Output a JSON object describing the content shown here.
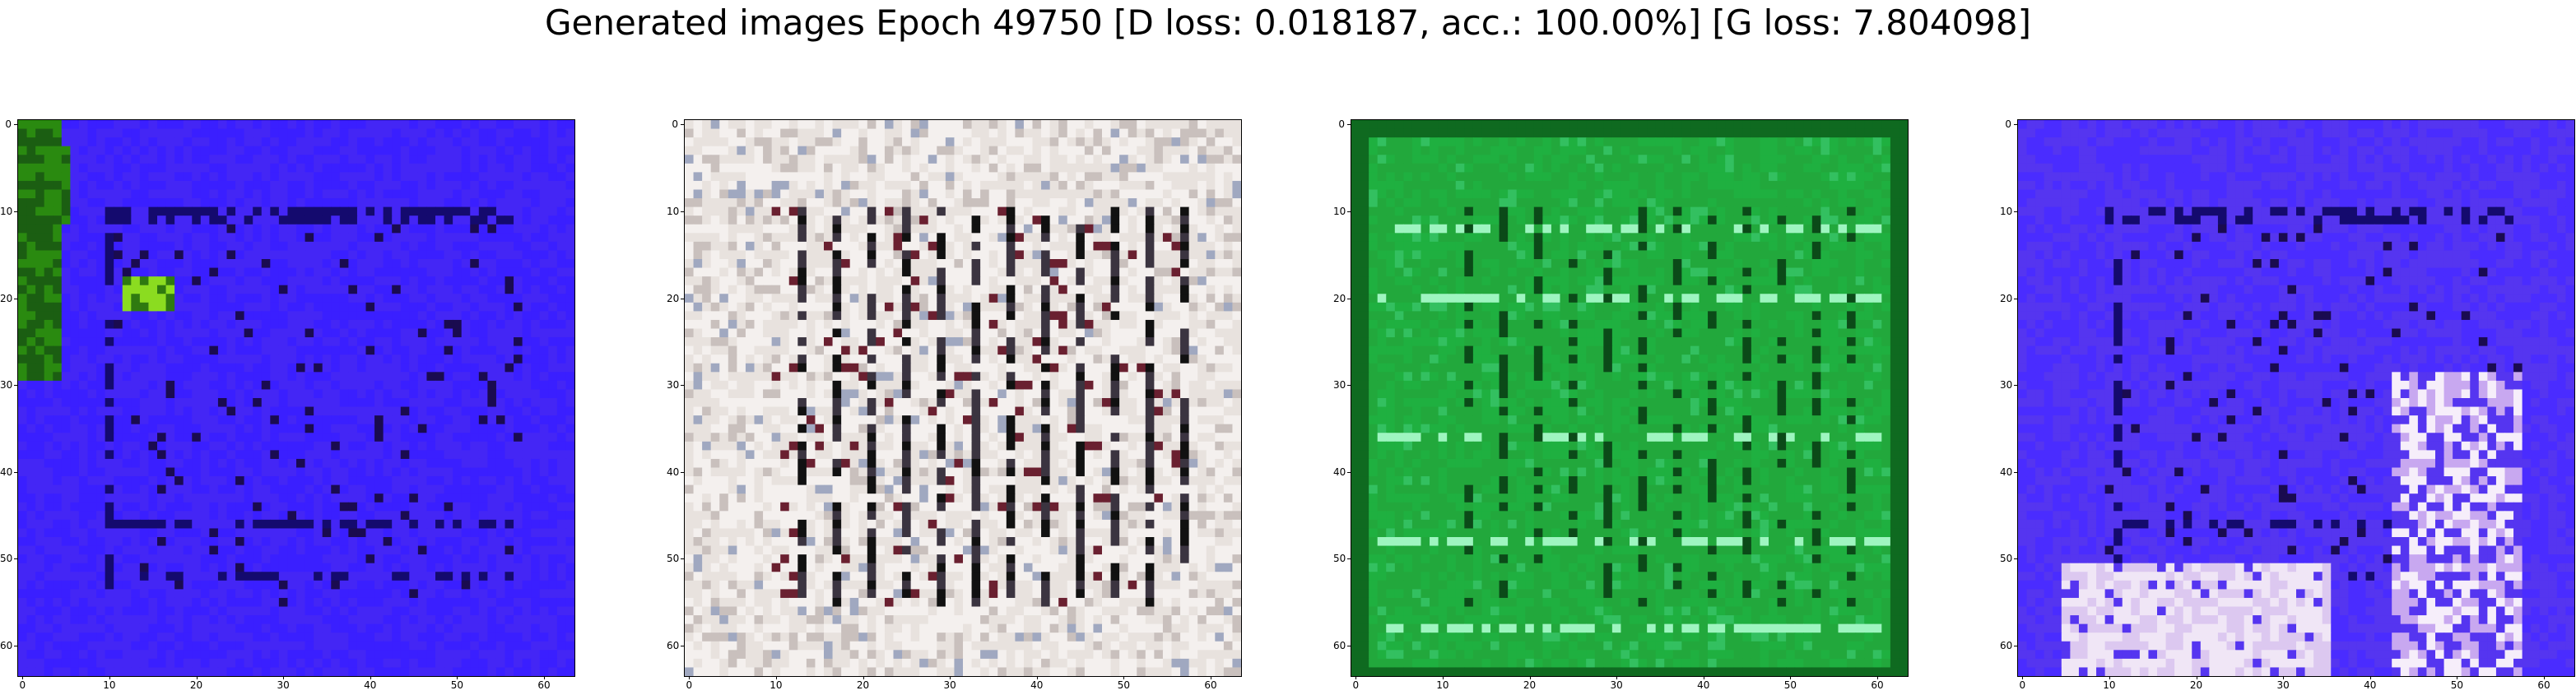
{
  "title": "Generated images Epoch 49750 [D loss: 0.018187, acc.: 100.00%] [G loss: 7.804098]",
  "panels": [
    {
      "description_color": "#3a1fff",
      "dominant": "blue",
      "x_ticks": [
        "0",
        "10",
        "20",
        "30",
        "40",
        "50",
        "60"
      ],
      "y_ticks": [
        "0",
        "10",
        "20",
        "30",
        "40",
        "50",
        "60"
      ]
    },
    {
      "description_color": "#e6e0dc",
      "dominant": "light-grey",
      "x_ticks": [
        "0",
        "10",
        "20",
        "30",
        "40",
        "50",
        "60"
      ],
      "y_ticks": [
        "0",
        "10",
        "20",
        "30",
        "40",
        "50",
        "60"
      ]
    },
    {
      "description_color": "#1fb040",
      "dominant": "green",
      "x_ticks": [
        "0",
        "10",
        "20",
        "30",
        "40",
        "50",
        "60"
      ],
      "y_ticks": [
        "0",
        "10",
        "20",
        "30",
        "40",
        "50",
        "60"
      ]
    },
    {
      "description_color": "#4a2cff",
      "dominant": "blue-violet",
      "x_ticks": [
        "0",
        "10",
        "20",
        "30",
        "40",
        "50",
        "60"
      ],
      "y_ticks": [
        "0",
        "10",
        "20",
        "30",
        "40",
        "50",
        "60"
      ]
    }
  ],
  "image_size": 64
}
